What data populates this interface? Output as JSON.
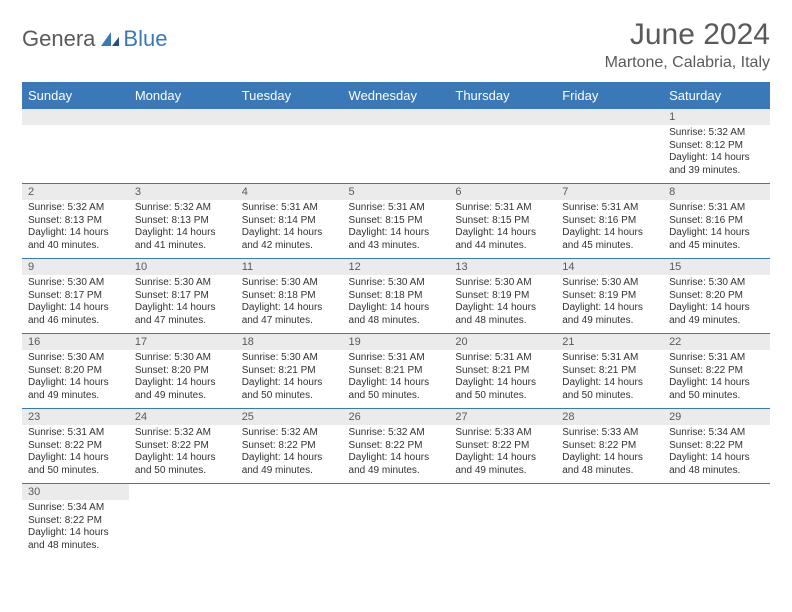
{
  "logo": {
    "main": "Genera",
    "accent": "Blue"
  },
  "title": {
    "month": "June 2024",
    "location": "Martone, Calabria, Italy"
  },
  "colors": {
    "header_bg": "#3b78b8",
    "header_text": "#ffffff",
    "daynum_bg": "#ebebeb",
    "row_border": "#3b78b8",
    "text": "#333333",
    "muted": "#5a5a5a"
  },
  "layout": {
    "cols": 7,
    "col_width_pct": 14.28
  },
  "weekdays": [
    "Sunday",
    "Monday",
    "Tuesday",
    "Wednesday",
    "Thursday",
    "Friday",
    "Saturday"
  ],
  "weeks": [
    [
      null,
      null,
      null,
      null,
      null,
      null,
      {
        "n": "1",
        "sr": "Sunrise: 5:32 AM",
        "ss": "Sunset: 8:12 PM",
        "dl": "Daylight: 14 hours and 39 minutes."
      }
    ],
    [
      {
        "n": "2",
        "sr": "Sunrise: 5:32 AM",
        "ss": "Sunset: 8:13 PM",
        "dl": "Daylight: 14 hours and 40 minutes."
      },
      {
        "n": "3",
        "sr": "Sunrise: 5:32 AM",
        "ss": "Sunset: 8:13 PM",
        "dl": "Daylight: 14 hours and 41 minutes."
      },
      {
        "n": "4",
        "sr": "Sunrise: 5:31 AM",
        "ss": "Sunset: 8:14 PM",
        "dl": "Daylight: 14 hours and 42 minutes."
      },
      {
        "n": "5",
        "sr": "Sunrise: 5:31 AM",
        "ss": "Sunset: 8:15 PM",
        "dl": "Daylight: 14 hours and 43 minutes."
      },
      {
        "n": "6",
        "sr": "Sunrise: 5:31 AM",
        "ss": "Sunset: 8:15 PM",
        "dl": "Daylight: 14 hours and 44 minutes."
      },
      {
        "n": "7",
        "sr": "Sunrise: 5:31 AM",
        "ss": "Sunset: 8:16 PM",
        "dl": "Daylight: 14 hours and 45 minutes."
      },
      {
        "n": "8",
        "sr": "Sunrise: 5:31 AM",
        "ss": "Sunset: 8:16 PM",
        "dl": "Daylight: 14 hours and 45 minutes."
      }
    ],
    [
      {
        "n": "9",
        "sr": "Sunrise: 5:30 AM",
        "ss": "Sunset: 8:17 PM",
        "dl": "Daylight: 14 hours and 46 minutes."
      },
      {
        "n": "10",
        "sr": "Sunrise: 5:30 AM",
        "ss": "Sunset: 8:17 PM",
        "dl": "Daylight: 14 hours and 47 minutes."
      },
      {
        "n": "11",
        "sr": "Sunrise: 5:30 AM",
        "ss": "Sunset: 8:18 PM",
        "dl": "Daylight: 14 hours and 47 minutes."
      },
      {
        "n": "12",
        "sr": "Sunrise: 5:30 AM",
        "ss": "Sunset: 8:18 PM",
        "dl": "Daylight: 14 hours and 48 minutes."
      },
      {
        "n": "13",
        "sr": "Sunrise: 5:30 AM",
        "ss": "Sunset: 8:19 PM",
        "dl": "Daylight: 14 hours and 48 minutes."
      },
      {
        "n": "14",
        "sr": "Sunrise: 5:30 AM",
        "ss": "Sunset: 8:19 PM",
        "dl": "Daylight: 14 hours and 49 minutes."
      },
      {
        "n": "15",
        "sr": "Sunrise: 5:30 AM",
        "ss": "Sunset: 8:20 PM",
        "dl": "Daylight: 14 hours and 49 minutes."
      }
    ],
    [
      {
        "n": "16",
        "sr": "Sunrise: 5:30 AM",
        "ss": "Sunset: 8:20 PM",
        "dl": "Daylight: 14 hours and 49 minutes."
      },
      {
        "n": "17",
        "sr": "Sunrise: 5:30 AM",
        "ss": "Sunset: 8:20 PM",
        "dl": "Daylight: 14 hours and 49 minutes."
      },
      {
        "n": "18",
        "sr": "Sunrise: 5:30 AM",
        "ss": "Sunset: 8:21 PM",
        "dl": "Daylight: 14 hours and 50 minutes."
      },
      {
        "n": "19",
        "sr": "Sunrise: 5:31 AM",
        "ss": "Sunset: 8:21 PM",
        "dl": "Daylight: 14 hours and 50 minutes."
      },
      {
        "n": "20",
        "sr": "Sunrise: 5:31 AM",
        "ss": "Sunset: 8:21 PM",
        "dl": "Daylight: 14 hours and 50 minutes."
      },
      {
        "n": "21",
        "sr": "Sunrise: 5:31 AM",
        "ss": "Sunset: 8:21 PM",
        "dl": "Daylight: 14 hours and 50 minutes."
      },
      {
        "n": "22",
        "sr": "Sunrise: 5:31 AM",
        "ss": "Sunset: 8:22 PM",
        "dl": "Daylight: 14 hours and 50 minutes."
      }
    ],
    [
      {
        "n": "23",
        "sr": "Sunrise: 5:31 AM",
        "ss": "Sunset: 8:22 PM",
        "dl": "Daylight: 14 hours and 50 minutes."
      },
      {
        "n": "24",
        "sr": "Sunrise: 5:32 AM",
        "ss": "Sunset: 8:22 PM",
        "dl": "Daylight: 14 hours and 50 minutes."
      },
      {
        "n": "25",
        "sr": "Sunrise: 5:32 AM",
        "ss": "Sunset: 8:22 PM",
        "dl": "Daylight: 14 hours and 49 minutes."
      },
      {
        "n": "26",
        "sr": "Sunrise: 5:32 AM",
        "ss": "Sunset: 8:22 PM",
        "dl": "Daylight: 14 hours and 49 minutes."
      },
      {
        "n": "27",
        "sr": "Sunrise: 5:33 AM",
        "ss": "Sunset: 8:22 PM",
        "dl": "Daylight: 14 hours and 49 minutes."
      },
      {
        "n": "28",
        "sr": "Sunrise: 5:33 AM",
        "ss": "Sunset: 8:22 PM",
        "dl": "Daylight: 14 hours and 48 minutes."
      },
      {
        "n": "29",
        "sr": "Sunrise: 5:34 AM",
        "ss": "Sunset: 8:22 PM",
        "dl": "Daylight: 14 hours and 48 minutes."
      }
    ],
    [
      {
        "n": "30",
        "sr": "Sunrise: 5:34 AM",
        "ss": "Sunset: 8:22 PM",
        "dl": "Daylight: 14 hours and 48 minutes."
      },
      null,
      null,
      null,
      null,
      null,
      null
    ]
  ]
}
